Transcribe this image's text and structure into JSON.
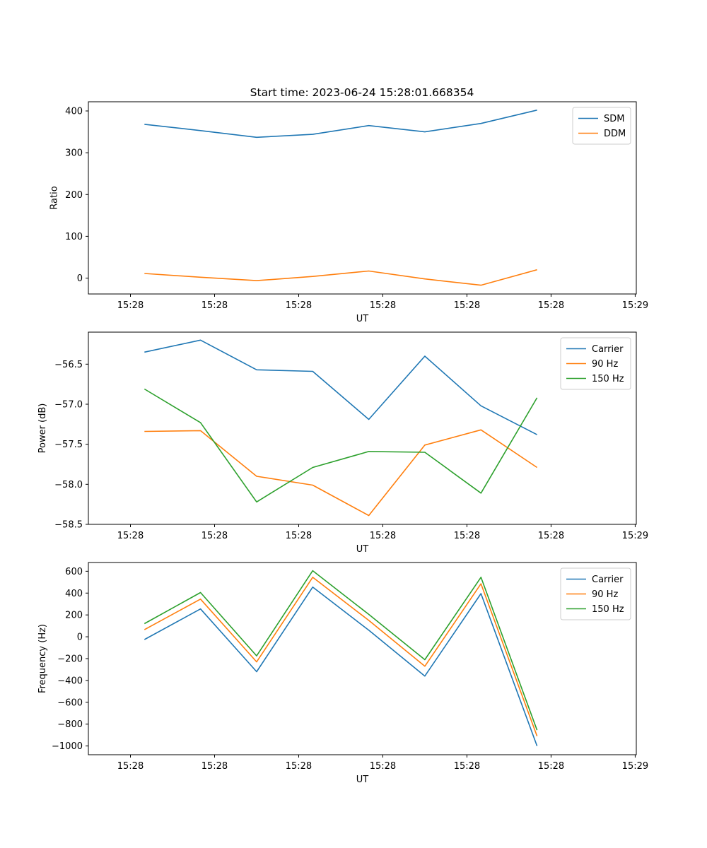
{
  "figure": {
    "title": "Start time: 2023-06-24 15:28:01.668354"
  },
  "chart_data": [
    {
      "type": "line",
      "title": "Start time: 2023-06-24 15:28:01.668354",
      "xlabel": "UT",
      "ylabel": "Ratio",
      "x": [
        1,
        2,
        3,
        4,
        5,
        6,
        7,
        8
      ],
      "x_ticks": [
        0.75,
        2.25,
        3.75,
        5.25,
        6.75,
        8.25,
        9.75
      ],
      "x_tick_labels": [
        "15:28",
        "15:28",
        "15:28",
        "15:28",
        "15:28",
        "15:28",
        "15:29"
      ],
      "xlim": [
        0.0,
        9.77
      ],
      "ylim": [
        -38,
        422
      ],
      "y_ticks": [
        0,
        100,
        200,
        300,
        400
      ],
      "y_tick_labels": [
        "0",
        "100",
        "200",
        "300",
        "400"
      ],
      "legend": "top-right",
      "grid": false,
      "series": [
        {
          "name": "SDM",
          "color": "#1f77b4",
          "values": [
            368,
            353,
            337,
            344,
            365,
            350,
            370,
            402
          ]
        },
        {
          "name": "DDM",
          "color": "#ff7f0e",
          "values": [
            11,
            2,
            -6,
            4,
            17,
            -2,
            -17,
            20
          ]
        }
      ]
    },
    {
      "type": "line",
      "title": "",
      "xlabel": "UT",
      "ylabel": "Power (dB)",
      "x": [
        1,
        2,
        3,
        4,
        5,
        6,
        7,
        8
      ],
      "x_ticks": [
        0.75,
        2.25,
        3.75,
        5.25,
        6.75,
        8.25,
        9.75
      ],
      "x_tick_labels": [
        "15:28",
        "15:28",
        "15:28",
        "15:28",
        "15:28",
        "15:28",
        "15:29"
      ],
      "xlim": [
        0.0,
        9.77
      ],
      "ylim": [
        -58.5,
        -56.1
      ],
      "y_ticks": [
        -58.5,
        -58.0,
        -57.5,
        -57.0,
        -56.5
      ],
      "y_tick_labels": [
        "−58.5",
        "−58.0",
        "−57.5",
        "−57.0",
        "−56.5"
      ],
      "legend": "top-right",
      "grid": false,
      "series": [
        {
          "name": "Carrier",
          "color": "#1f77b4",
          "values": [
            -56.35,
            -56.2,
            -56.57,
            -56.59,
            -57.19,
            -56.4,
            -57.02,
            -57.38
          ]
        },
        {
          "name": "90 Hz",
          "color": "#ff7f0e",
          "values": [
            -57.34,
            -57.33,
            -57.9,
            -58.01,
            -58.39,
            -57.51,
            -57.32,
            -57.79
          ]
        },
        {
          "name": "150 Hz",
          "color": "#2ca02c",
          "values": [
            -56.81,
            -57.23,
            -58.22,
            -57.79,
            -57.59,
            -57.6,
            -58.11,
            -56.92
          ]
        }
      ]
    },
    {
      "type": "line",
      "title": "",
      "xlabel": "UT",
      "ylabel": "Frequency (Hz)",
      "x": [
        1,
        2,
        3,
        4,
        5,
        6,
        7,
        8
      ],
      "x_ticks": [
        0.75,
        2.25,
        3.75,
        5.25,
        6.75,
        8.25,
        9.75
      ],
      "x_tick_labels": [
        "15:28",
        "15:28",
        "15:28",
        "15:28",
        "15:28",
        "15:28",
        "15:29"
      ],
      "xlim": [
        0.0,
        9.77
      ],
      "ylim": [
        -1080,
        680
      ],
      "y_ticks": [
        -1000,
        -800,
        -600,
        -400,
        -200,
        0,
        200,
        400,
        600
      ],
      "y_tick_labels": [
        "−1000",
        "−800",
        "−600",
        "−400",
        "−200",
        "0",
        "200",
        "400",
        "600"
      ],
      "legend": "top-right",
      "grid": false,
      "series": [
        {
          "name": "Carrier",
          "color": "#1f77b4",
          "values": [
            -25,
            255,
            -320,
            455,
            60,
            -360,
            395,
            -1000
          ]
        },
        {
          "name": "90 Hz",
          "color": "#ff7f0e",
          "values": [
            65,
            345,
            -230,
            545,
            150,
            -270,
            485,
            -910
          ]
        },
        {
          "name": "150 Hz",
          "color": "#2ca02c",
          "values": [
            120,
            405,
            -175,
            605,
            205,
            -210,
            545,
            -855
          ]
        }
      ]
    }
  ]
}
